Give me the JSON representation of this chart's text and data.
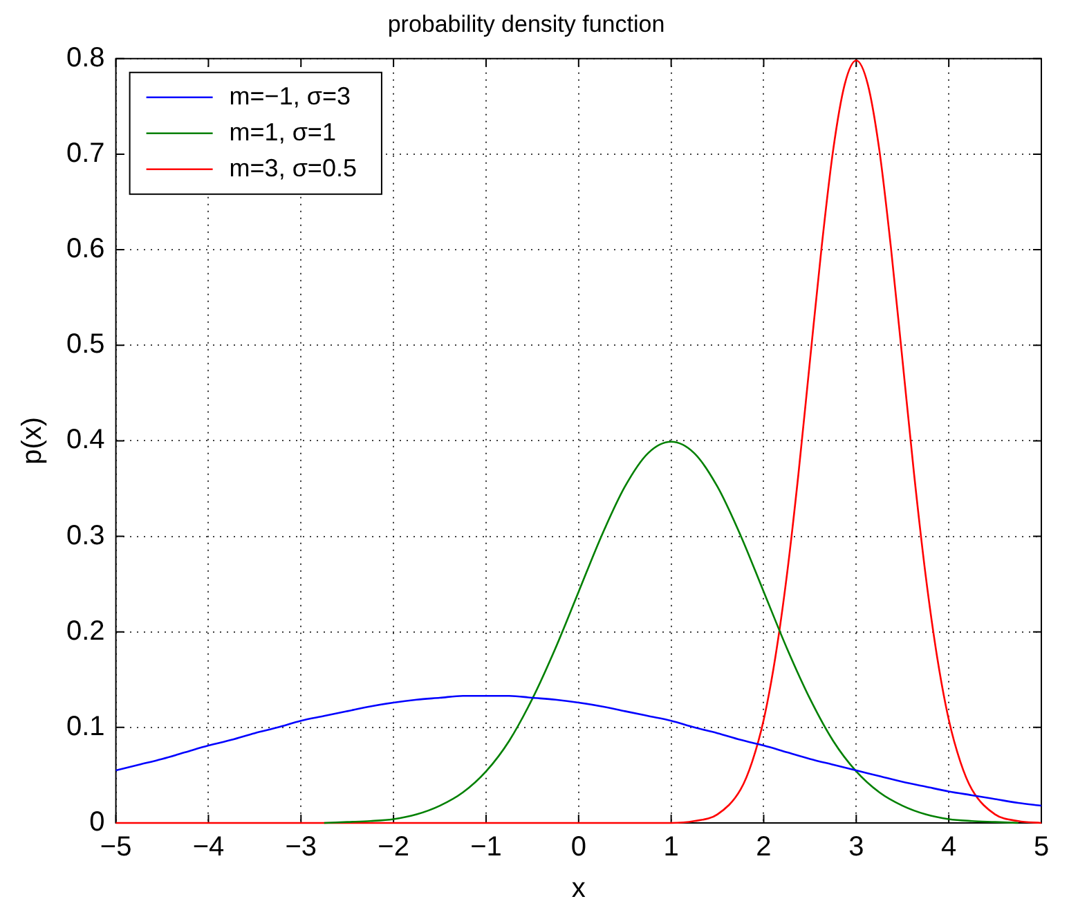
{
  "chart_data": {
    "type": "line",
    "title": "probability density function",
    "xlabel": "x",
    "ylabel": "p(x)",
    "x": [
      -5,
      -4.75,
      -4.5,
      -4.25,
      -4,
      -3.75,
      -3.5,
      -3.25,
      -3,
      -2.75,
      -2.5,
      -2.25,
      -2,
      -1.75,
      -1.5,
      -1.25,
      -1,
      -0.75,
      -0.5,
      -0.25,
      0,
      0.25,
      0.5,
      0.75,
      1,
      1.25,
      1.5,
      1.75,
      2,
      2.25,
      2.5,
      2.75,
      3,
      3.25,
      3.5,
      3.75,
      4,
      4.25,
      4.5,
      4.75,
      5
    ],
    "series": [
      {
        "name": "m=−1, σ=3",
        "color": "#0000ff",
        "values": [
          0.055,
          0.061,
          0.067,
          0.074,
          0.081,
          0.087,
          0.094,
          0.1,
          0.107,
          0.112,
          0.117,
          0.122,
          0.126,
          0.129,
          0.131,
          0.133,
          0.133,
          0.133,
          0.131,
          0.129,
          0.126,
          0.122,
          0.117,
          0.112,
          0.107,
          0.1,
          0.094,
          0.087,
          0.081,
          0.074,
          0.067,
          0.061,
          0.055,
          0.049,
          0.043,
          0.038,
          0.033,
          0.029,
          0.025,
          0.021,
          0.018
        ]
      },
      {
        "name": "m=1, σ=1",
        "color": "#008000",
        "values": [
          null,
          null,
          null,
          null,
          null,
          null,
          null,
          null,
          null,
          0,
          0.001,
          0.002,
          0.004,
          0.009,
          0.018,
          0.032,
          0.054,
          0.086,
          0.13,
          0.183,
          0.242,
          0.301,
          0.352,
          0.387,
          0.399,
          0.387,
          0.352,
          0.301,
          0.242,
          0.183,
          0.13,
          0.086,
          0.054,
          0.032,
          0.018,
          0.009,
          0.004,
          0.002,
          0.001,
          0,
          null
        ]
      },
      {
        "name": "m=3, σ=0.5",
        "color": "#ff0000",
        "x": [
          -5,
          -2,
          1,
          1.25,
          1.5,
          1.75,
          1.875,
          2,
          2.125,
          2.25,
          2.375,
          2.5,
          2.625,
          2.75,
          2.875,
          3,
          3.125,
          3.25,
          3.375,
          3.5,
          3.625,
          3.75,
          3.875,
          4,
          4.125,
          4.25,
          4.5,
          4.75,
          5
        ],
        "values": [
          0,
          0,
          0,
          0.002,
          0.009,
          0.035,
          0.064,
          0.108,
          0.173,
          0.259,
          0.365,
          0.484,
          0.602,
          0.704,
          0.773,
          0.798,
          0.773,
          0.704,
          0.602,
          0.484,
          0.365,
          0.259,
          0.173,
          0.108,
          0.064,
          0.035,
          0.009,
          0.002,
          0
        ]
      }
    ],
    "xlim": [
      -5,
      5
    ],
    "xticks": [
      {
        "value": -5,
        "label": "−5"
      },
      {
        "value": -4,
        "label": "−4"
      },
      {
        "value": -3,
        "label": "−3"
      },
      {
        "value": -2,
        "label": "−2"
      },
      {
        "value": -1,
        "label": "−1"
      },
      0,
      1,
      2,
      3,
      4,
      5
    ],
    "ylim": [
      0,
      0.8
    ],
    "yticks": [
      0,
      0.1,
      0.2,
      0.3,
      0.4,
      0.5,
      0.6,
      0.7,
      0.8
    ],
    "grid": true,
    "legend": "top left",
    "line_style": "solid",
    "marker": "none"
  }
}
